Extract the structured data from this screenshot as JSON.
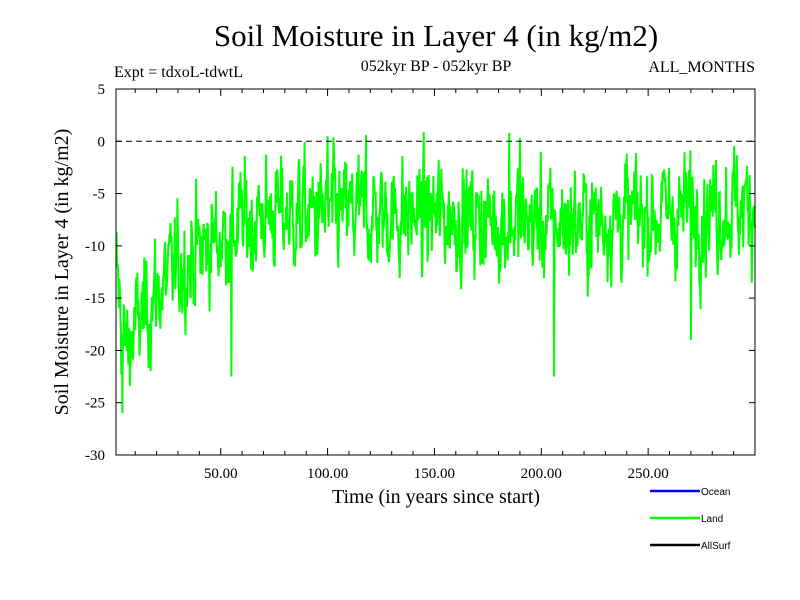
{
  "chart_data": {
    "type": "line",
    "title": "Soil Moisture in Layer 4 (in kg/m2)",
    "subtitle_left": "Expt = tdxoL-tdwtL",
    "subtitle_center": "052kyr BP - 052kyr BP",
    "subtitle_right": "ALL_MONTHS",
    "xlabel": "Time (in years since start)",
    "ylabel": "Soil Moisture in Layer 4 (in kg/m2)",
    "xlim": [
      1,
      300
    ],
    "ylim": [
      -30,
      5
    ],
    "x_ticks": [
      50,
      100,
      150,
      200,
      250
    ],
    "x_tick_labels": [
      "50.00",
      "100.00",
      "150.00",
      "200.00",
      "250.00"
    ],
    "y_ticks": [
      5,
      0,
      -5,
      -10,
      -15,
      -20,
      -25,
      -30
    ],
    "y_tick_labels": [
      "5",
      "0",
      "-5",
      "-10",
      "-15",
      "-20",
      "-25",
      "-30"
    ],
    "reference_line": 0,
    "legend": [
      {
        "name": "Ocean",
        "label": "Ocean",
        "color": "#0000ff"
      },
      {
        "name": "Land",
        "label": "Land",
        "color": "#00ff00"
      },
      {
        "name": "AllSurf",
        "label": "AllSurf",
        "color": "#000000"
      }
    ],
    "series": [
      {
        "name": "Land",
        "color": "#00ff00",
        "x_start": 1,
        "x_step": 0.25,
        "trend_points": [
          [
            1,
            -12
          ],
          [
            5,
            -20
          ],
          [
            15,
            -16
          ],
          [
            30,
            -12
          ],
          [
            50,
            -9
          ],
          [
            70,
            -7
          ],
          [
            100,
            -7
          ],
          [
            150,
            -7
          ],
          [
            200,
            -8
          ],
          [
            250,
            -7
          ],
          [
            300,
            -6
          ]
        ],
        "notable_values": [
          {
            "x": 4,
            "y": -26
          },
          {
            "x": 36,
            "y": -15
          },
          {
            "x": 55,
            "y": -22.5
          },
          {
            "x": 100,
            "y": 0.5
          },
          {
            "x": 118,
            "y": 0.6
          },
          {
            "x": 185,
            "y": 0.8
          },
          {
            "x": 190,
            "y": 0.3
          },
          {
            "x": 206,
            "y": -22.5
          },
          {
            "x": 270,
            "y": -19
          }
        ]
      }
    ]
  }
}
